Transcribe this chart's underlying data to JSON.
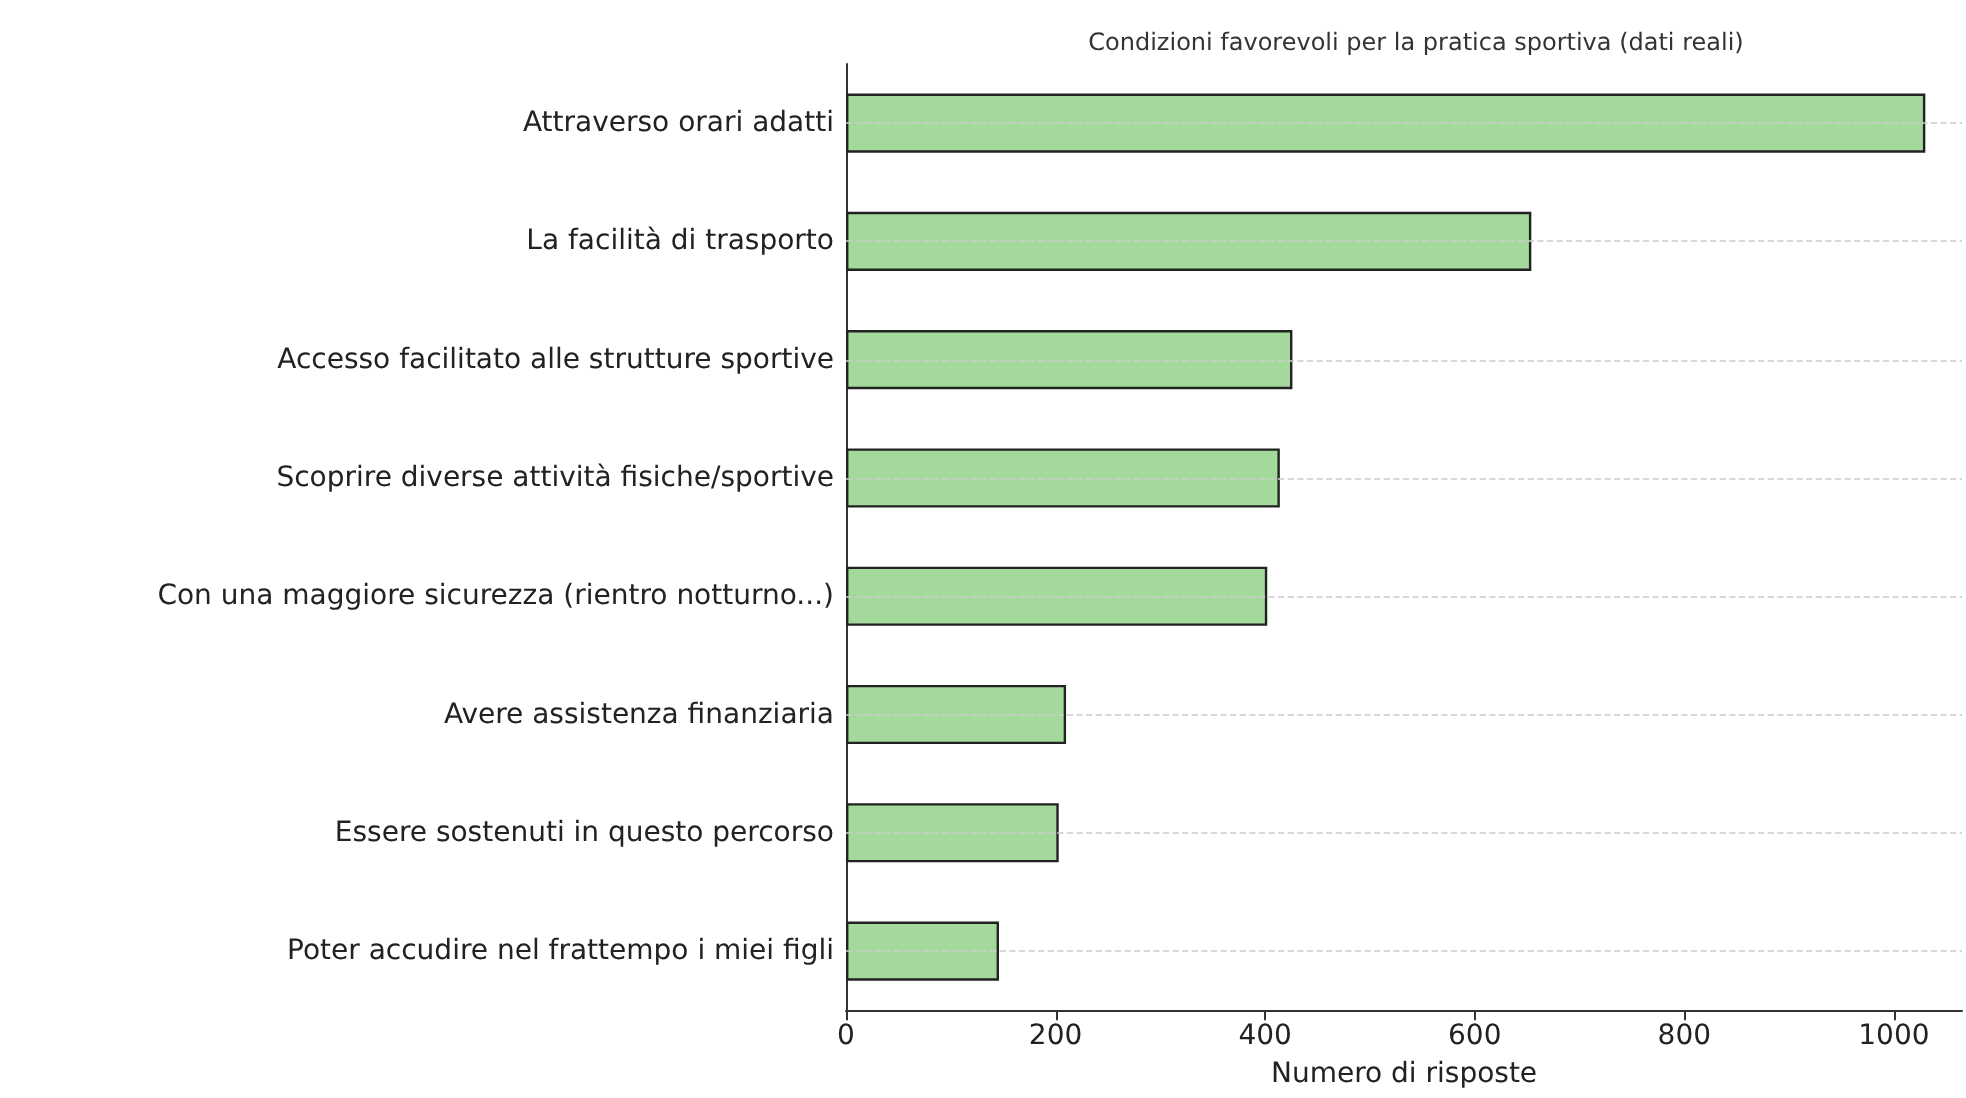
{
  "chart_data": {
    "type": "bar",
    "orientation": "horizontal",
    "title": "Condizioni favorevoli per la pratica sportiva (dati reali)",
    "xlabel": "Numero di risposte",
    "categories": [
      "Attraverso orari adatti",
      "La facilità di trasporto",
      "Accesso facilitato alle strutture sportive",
      "Scoprire diverse attività fisiche/sportive",
      "Con una maggiore sicurezza (rientro notturno...)",
      "Avere assistenza finanziaria",
      "Essere sostenuti in questo percorso",
      "Poter accudire nel frattempo i miei figli"
    ],
    "values": [
      1030,
      654,
      426,
      414,
      402,
      210,
      203,
      146
    ],
    "color": "#a3d99b",
    "xlim": [
      0,
      1065
    ],
    "xticks": [
      0,
      200,
      400,
      600,
      800,
      1000
    ],
    "grid": "y"
  }
}
